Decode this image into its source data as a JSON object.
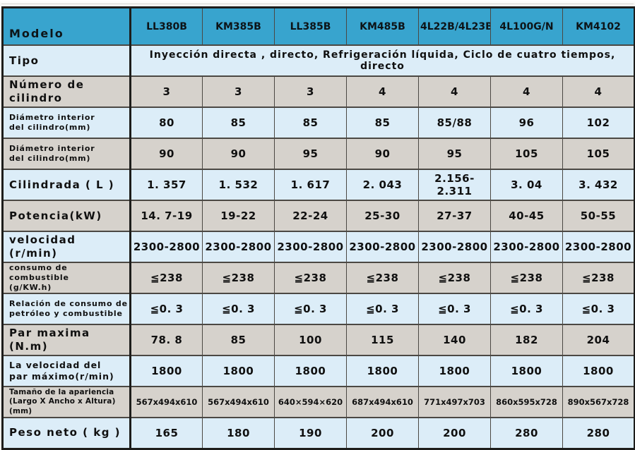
{
  "colors": {
    "header_bg": "#38a4ce",
    "row_light_blue": "#dcedf8",
    "row_grey": "#d6d2cc",
    "border_dark": "#1d1d1b",
    "text": "#101010"
  },
  "table": {
    "header": {
      "label": "Modelo",
      "models": [
        "LL380B",
        "KM385B",
        "LL385B",
        "KM485B",
        "4L22B/4L23B",
        "4L100G/N",
        "KM4102"
      ]
    },
    "rows": [
      {
        "id": "tipo",
        "label": "Tipo",
        "merged": "Inyección directa , directo, Refrigeración líquida, Ciclo de cuatro tiempos, directo"
      },
      {
        "id": "numero-de-cilindro",
        "label": "Número de cilindro",
        "values": [
          "3",
          "3",
          "3",
          "4",
          "4",
          "4",
          "4"
        ]
      },
      {
        "id": "diametro-interior-1",
        "label": "Diámetro interior\ndel cilindro(mm)",
        "values": [
          "80",
          "85",
          "85",
          "85",
          "85/88",
          "96",
          "102"
        ]
      },
      {
        "id": "diametro-interior-2",
        "label": "Diámetro interior\ndel cilindro(mm)",
        "values": [
          "90",
          "90",
          "95",
          "90",
          "95",
          "105",
          "105"
        ]
      },
      {
        "id": "cilindrada",
        "label": "Cilindrada ( L )",
        "values": [
          "1. 357",
          "1. 532",
          "1. 617",
          "2. 043",
          "2.156-2.311",
          "3. 04",
          "3. 432"
        ]
      },
      {
        "id": "potencia",
        "label": "Potencia(kW)",
        "values": [
          "14. 7-19",
          "19-22",
          "22-24",
          "25-30",
          "27-37",
          "40-45",
          "50-55"
        ]
      },
      {
        "id": "velocidad",
        "label": "velocidad (r/min)",
        "values": [
          "2300-2800",
          "2300-2800",
          "2300-2800",
          "2300-2800",
          "2300-2800",
          "2300-2800",
          "2300-2800"
        ]
      },
      {
        "id": "consumo-combustible",
        "label": "consumo de combustible\n(g/KW.h)",
        "values": [
          "≦238",
          "≦238",
          "≦238",
          "≦238",
          "≦238",
          "≦238",
          "≦238"
        ]
      },
      {
        "id": "relacion-consumo",
        "label": "Relación de consumo de\npetróleo y combustible",
        "values": [
          "≦0. 3",
          "≦0. 3",
          "≦0. 3",
          "≦0. 3",
          "≦0. 3",
          "≦0. 3",
          "≦0. 3"
        ]
      },
      {
        "id": "par-maxima",
        "label": "Par maxima (N.m)",
        "values": [
          "78. 8",
          "85",
          "100",
          "115",
          "140",
          "182",
          "204"
        ]
      },
      {
        "id": "velocidad-par-maximo",
        "label": "La velocidad del\npar máximo(r/min)",
        "values": [
          "1800",
          "1800",
          "1800",
          "1800",
          "1800",
          "1800",
          "1800"
        ]
      },
      {
        "id": "tamano-apariencia",
        "label": "Tamaño de la apariencia\n(Largo X Ancho x Altura)(mm)",
        "values": [
          "567x494x610",
          "567x494x610",
          "640×594×620",
          "687x494x610",
          "771x497x703",
          "860x595x728",
          "890x567x728"
        ]
      },
      {
        "id": "peso-neto",
        "label": "Peso neto ( kg )",
        "values": [
          "165",
          "180",
          "190",
          "200",
          "200",
          "280",
          "280"
        ]
      }
    ]
  }
}
